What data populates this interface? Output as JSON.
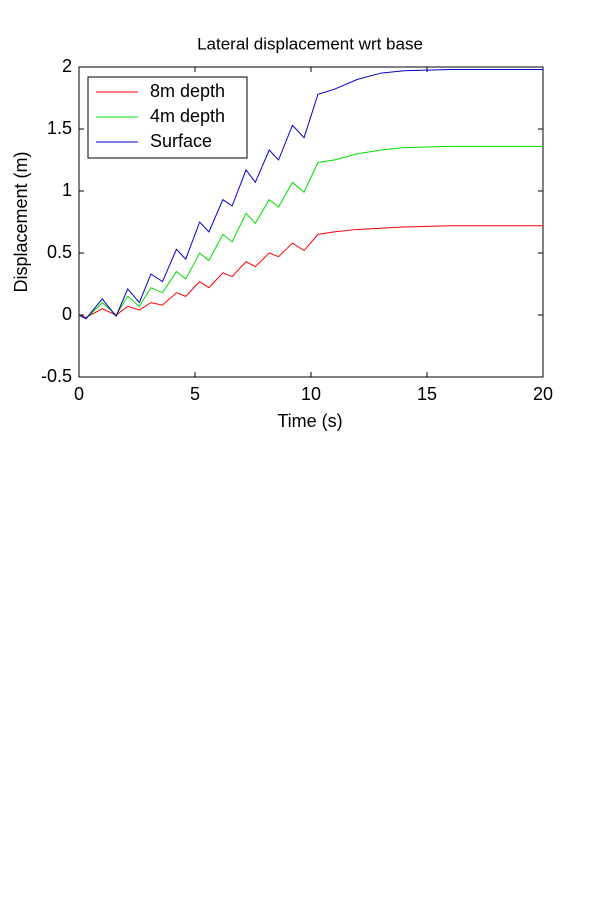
{
  "chart_data": {
    "type": "line",
    "title": "Lateral displacement wrt base",
    "x_label": "Time (s)",
    "y_label": "Displacement (m)",
    "x": [
      0,
      0.3,
      1.0,
      1.6,
      2.1,
      2.6,
      3.1,
      3.6,
      4.2,
      4.6,
      5.2,
      5.6,
      6.2,
      6.6,
      7.2,
      7.6,
      8.2,
      8.6,
      9.2,
      9.7,
      10.3,
      11,
      12,
      13,
      14,
      16,
      18,
      20
    ],
    "series": [
      {
        "name": "8m depth",
        "color": "#ff0000",
        "values": [
          0,
          -0.02,
          0.05,
          0.0,
          0.07,
          0.04,
          0.1,
          0.08,
          0.18,
          0.15,
          0.27,
          0.22,
          0.34,
          0.31,
          0.43,
          0.39,
          0.5,
          0.47,
          0.58,
          0.52,
          0.65,
          0.67,
          0.69,
          0.7,
          0.71,
          0.72,
          0.72,
          0.72
        ]
      },
      {
        "name": "4m depth",
        "color": "#00dd00",
        "values": [
          0,
          -0.03,
          0.1,
          0.0,
          0.15,
          0.07,
          0.22,
          0.18,
          0.35,
          0.29,
          0.5,
          0.44,
          0.65,
          0.59,
          0.82,
          0.74,
          0.93,
          0.87,
          1.07,
          0.99,
          1.23,
          1.25,
          1.3,
          1.33,
          1.35,
          1.36,
          1.36,
          1.36
        ]
      },
      {
        "name": "Surface",
        "color": "#0000cc",
        "values": [
          0,
          -0.03,
          0.13,
          -0.01,
          0.21,
          0.1,
          0.33,
          0.27,
          0.53,
          0.45,
          0.75,
          0.67,
          0.93,
          0.88,
          1.17,
          1.07,
          1.33,
          1.25,
          1.53,
          1.43,
          1.78,
          1.82,
          1.9,
          1.95,
          1.97,
          1.98,
          1.98,
          1.98
        ]
      }
    ],
    "xlim": [
      0,
      20
    ],
    "ylim": [
      -0.5,
      2
    ],
    "xticks": [
      0,
      5,
      10,
      15,
      20
    ],
    "yticks": [
      -0.5,
      0,
      0.5,
      1,
      1.5,
      2
    ],
    "grid": false,
    "legend": "upper-left"
  }
}
